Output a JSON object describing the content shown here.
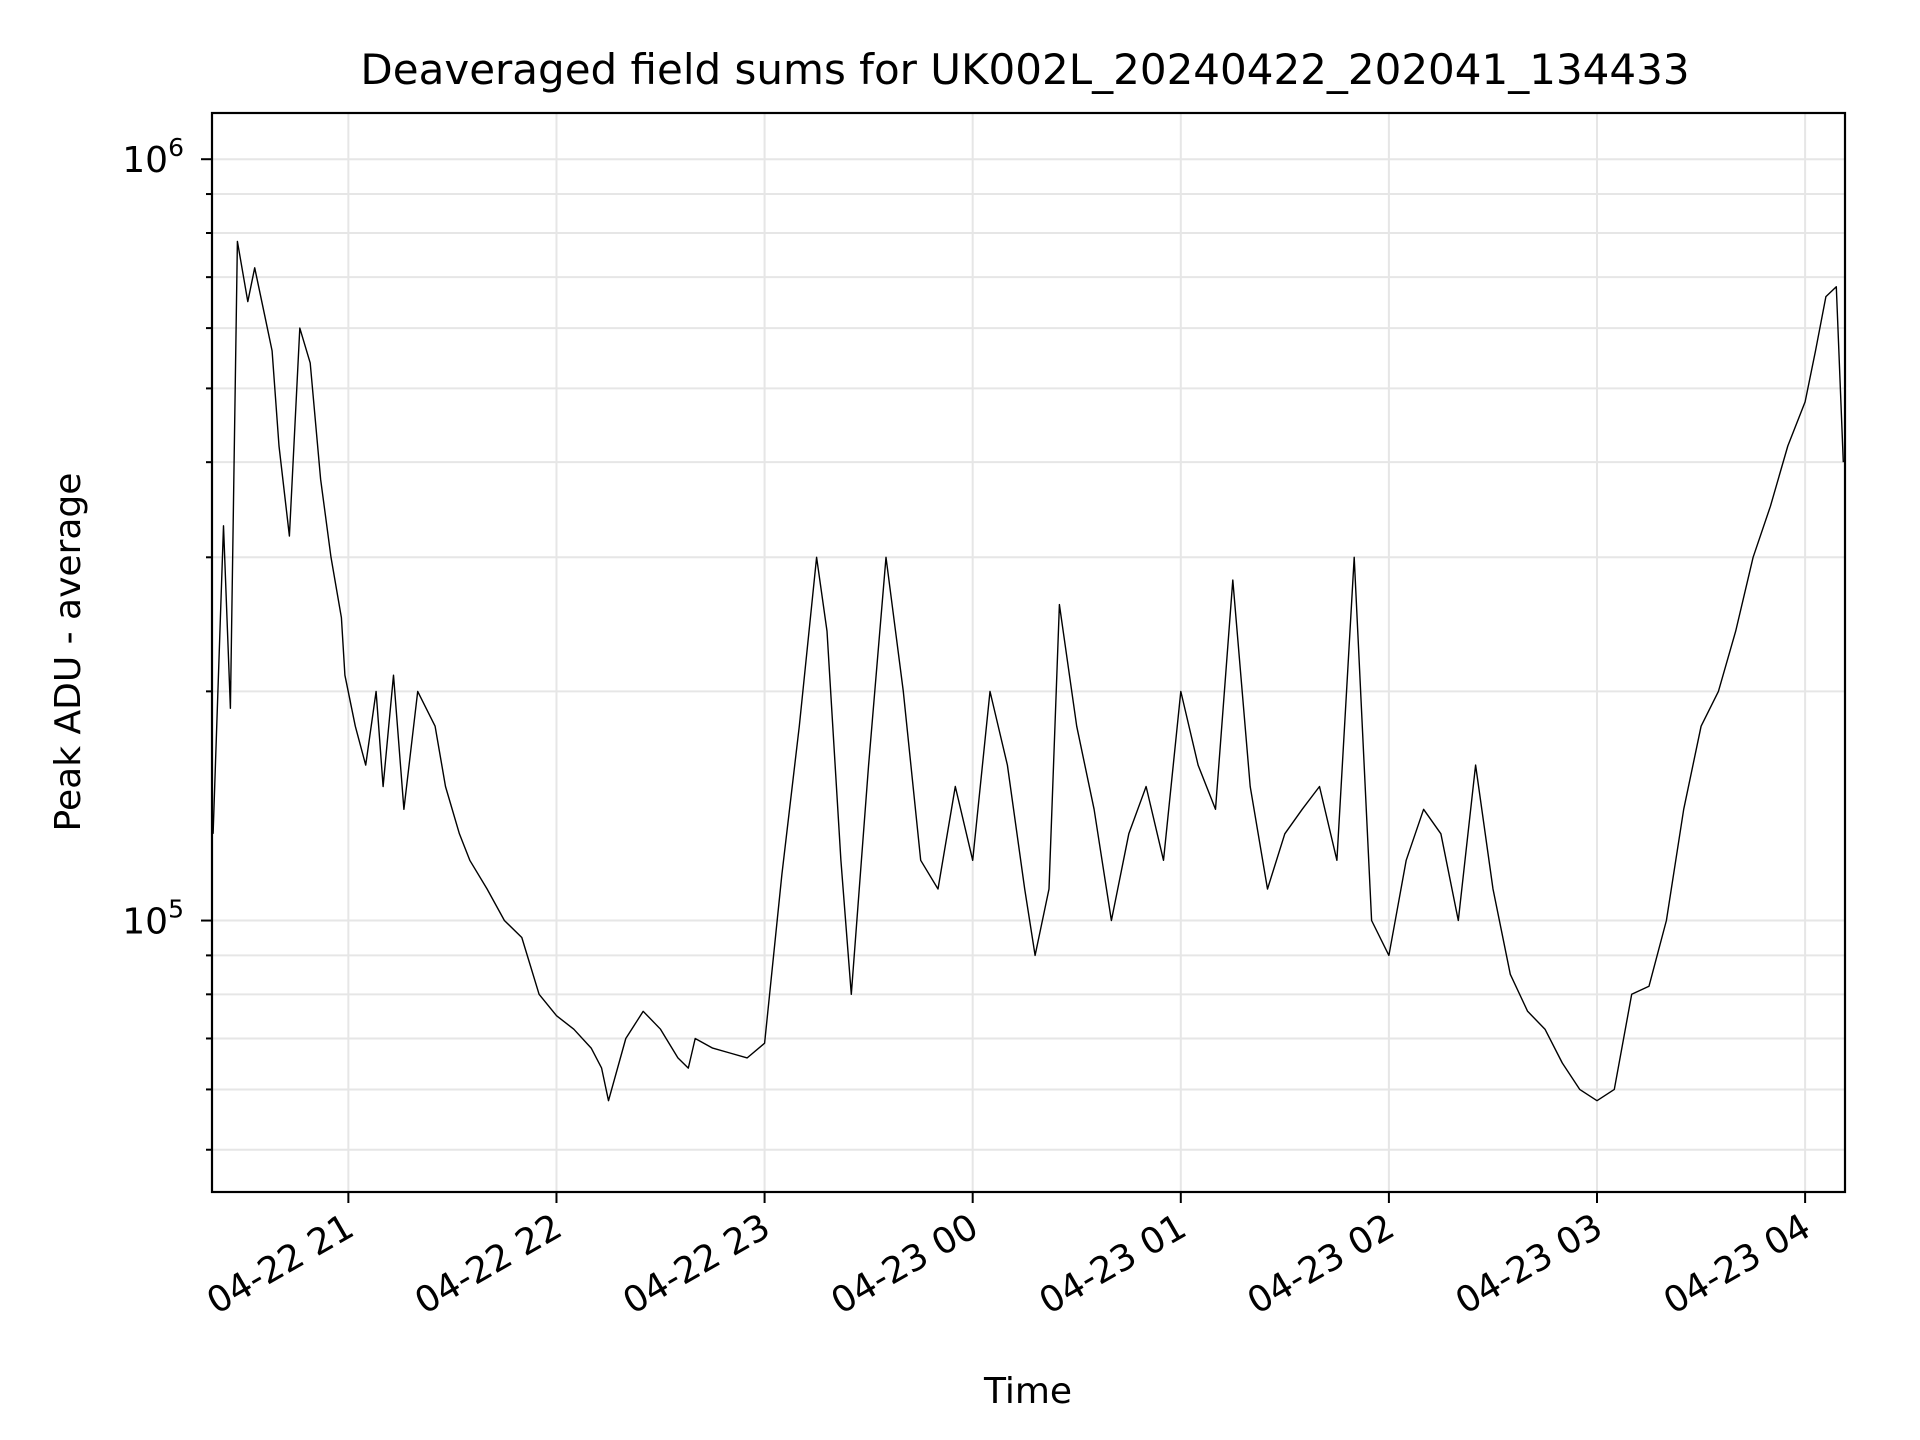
{
  "chart_data": {
    "type": "line",
    "title": "Deaveraged field sums for UK002L_20240422_202041_134433",
    "xlabel": "Time",
    "ylabel": "Peak ADU - average",
    "yscale": "log",
    "ylim": [
      44000,
      1150000
    ],
    "xlim": [
      "2024-04-22 20:20:41",
      "2024-04-23 04:11:30"
    ],
    "grid": true,
    "legend": "none",
    "line_color": "#000000",
    "grid_color": "#e6e6e6",
    "x_ticks": [
      "2024-04-22 21:00",
      "2024-04-22 22:00",
      "2024-04-22 23:00",
      "2024-04-23 00:00",
      "2024-04-23 01:00",
      "2024-04-23 02:00",
      "2024-04-23 03:00",
      "2024-04-23 04:00"
    ],
    "x_tick_labels": [
      "04-22 21",
      "04-22 22",
      "04-22 23",
      "04-23 00",
      "04-23 01",
      "04-23 02",
      "04-23 03",
      "04-23 04"
    ],
    "y_major_ticks": [
      100000,
      1000000
    ],
    "y_tick_labels": [
      {
        "base": "10",
        "exp": "5"
      },
      {
        "base": "10",
        "exp": "6"
      }
    ],
    "series": [
      {
        "x": [
          "2024-04-22 20:21",
          "2024-04-22 20:24",
          "2024-04-22 20:26",
          "2024-04-22 20:28",
          "2024-04-22 20:31",
          "2024-04-22 20:33",
          "2024-04-22 20:36",
          "2024-04-22 20:38",
          "2024-04-22 20:40",
          "2024-04-22 20:43",
          "2024-04-22 20:46",
          "2024-04-22 20:49",
          "2024-04-22 20:52",
          "2024-04-22 20:55",
          "2024-04-22 20:58",
          "2024-04-22 20:59",
          "2024-04-22 21:02",
          "2024-04-22 21:05",
          "2024-04-22 21:08",
          "2024-04-22 21:10",
          "2024-04-22 21:13",
          "2024-04-22 21:16",
          "2024-04-22 21:20",
          "2024-04-22 21:25",
          "2024-04-22 21:28",
          "2024-04-22 21:32",
          "2024-04-22 21:35",
          "2024-04-22 21:40",
          "2024-04-22 21:45",
          "2024-04-22 21:50",
          "2024-04-22 21:55",
          "2024-04-22 22:00",
          "2024-04-22 22:05",
          "2024-04-22 22:10",
          "2024-04-22 22:13",
          "2024-04-22 22:15",
          "2024-04-22 22:20",
          "2024-04-22 22:25",
          "2024-04-22 22:30",
          "2024-04-22 22:35",
          "2024-04-22 22:38",
          "2024-04-22 22:40",
          "2024-04-22 22:45",
          "2024-04-22 22:50",
          "2024-04-22 22:55",
          "2024-04-22 23:00",
          "2024-04-22 23:05",
          "2024-04-22 23:10",
          "2024-04-22 23:15",
          "2024-04-22 23:18",
          "2024-04-22 23:22",
          "2024-04-22 23:25",
          "2024-04-22 23:30",
          "2024-04-22 23:35",
          "2024-04-22 23:40",
          "2024-04-22 23:45",
          "2024-04-22 23:50",
          "2024-04-22 23:55",
          "2024-04-23 00:00",
          "2024-04-23 00:05",
          "2024-04-23 00:10",
          "2024-04-23 00:15",
          "2024-04-23 00:18",
          "2024-04-23 00:22",
          "2024-04-23 00:25",
          "2024-04-23 00:30",
          "2024-04-23 00:35",
          "2024-04-23 00:40",
          "2024-04-23 00:45",
          "2024-04-23 00:50",
          "2024-04-23 00:55",
          "2024-04-23 01:00",
          "2024-04-23 01:05",
          "2024-04-23 01:10",
          "2024-04-23 01:15",
          "2024-04-23 01:20",
          "2024-04-23 01:25",
          "2024-04-23 01:30",
          "2024-04-23 01:35",
          "2024-04-23 01:40",
          "2024-04-23 01:45",
          "2024-04-23 01:50",
          "2024-04-23 01:55",
          "2024-04-23 02:00",
          "2024-04-23 02:05",
          "2024-04-23 02:10",
          "2024-04-23 02:15",
          "2024-04-23 02:20",
          "2024-04-23 02:25",
          "2024-04-23 02:30",
          "2024-04-23 02:35",
          "2024-04-23 02:40",
          "2024-04-23 02:45",
          "2024-04-23 02:50",
          "2024-04-23 02:55",
          "2024-04-23 03:00",
          "2024-04-23 03:05",
          "2024-04-23 03:10",
          "2024-04-23 03:15",
          "2024-04-23 03:20",
          "2024-04-23 03:25",
          "2024-04-23 03:30",
          "2024-04-23 03:35",
          "2024-04-23 03:40",
          "2024-04-23 03:45",
          "2024-04-23 03:50",
          "2024-04-23 03:55",
          "2024-04-23 04:00",
          "2024-04-23 04:03",
          "2024-04-23 04:06",
          "2024-04-23 04:09",
          "2024-04-23 04:11"
        ],
        "y": [
          130000,
          330000,
          190000,
          780000,
          650000,
          720000,
          620000,
          560000,
          420000,
          320000,
          600000,
          540000,
          380000,
          300000,
          250000,
          210000,
          180000,
          160000,
          200000,
          150000,
          210000,
          140000,
          200000,
          180000,
          150000,
          130000,
          120000,
          110000,
          100000,
          95000,
          80000,
          75000,
          72000,
          68000,
          64000,
          58000,
          70000,
          76000,
          72000,
          66000,
          64000,
          70000,
          68000,
          67000,
          66000,
          69000,
          115000,
          180000,
          300000,
          240000,
          120000,
          80000,
          160000,
          300000,
          200000,
          120000,
          110000,
          150000,
          120000,
          200000,
          160000,
          110000,
          90000,
          110000,
          260000,
          180000,
          140000,
          100000,
          130000,
          150000,
          120000,
          200000,
          160000,
          140000,
          280000,
          150000,
          110000,
          130000,
          140000,
          150000,
          120000,
          300000,
          100000,
          90000,
          120000,
          140000,
          130000,
          100000,
          160000,
          110000,
          85000,
          76000,
          72000,
          65000,
          60000,
          58000,
          60000,
          80000,
          82000,
          100000,
          140000,
          180000,
          200000,
          240000,
          300000,
          350000,
          420000,
          480000,
          560000,
          660000,
          680000,
          400000
        ]
      }
    ]
  }
}
